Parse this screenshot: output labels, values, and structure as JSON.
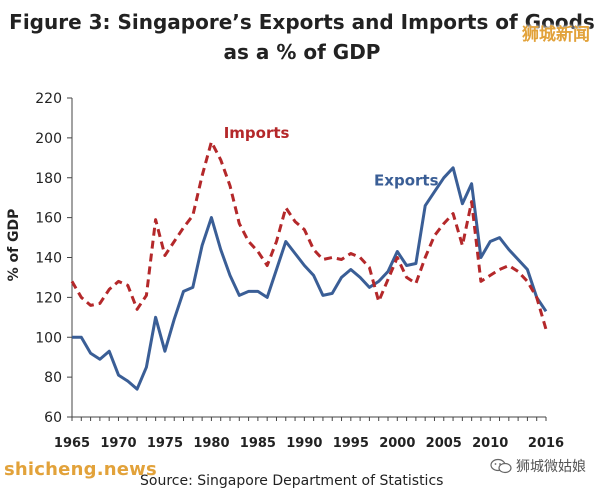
{
  "chart_data": {
    "type": "line",
    "title_line1": "Figure 3: Singapore’s Exports and Imports of Goods",
    "title_line2": "as a % of GDP",
    "ylabel": "% of GDP",
    "xlabel": "",
    "ylim": [
      60,
      220
    ],
    "yticks": [
      60,
      80,
      100,
      120,
      140,
      160,
      180,
      200,
      220
    ],
    "xlim": [
      1965,
      2016
    ],
    "xticks": [
      "1965",
      "1970",
      "1975",
      "1980",
      "1985",
      "1990",
      "1995",
      "2000",
      "2005",
      "2010",
      "2016"
    ],
    "x": [
      1965,
      1966,
      1967,
      1968,
      1969,
      1970,
      1971,
      1972,
      1973,
      1974,
      1975,
      1976,
      1977,
      1978,
      1979,
      1980,
      1981,
      1982,
      1983,
      1984,
      1985,
      1986,
      1987,
      1988,
      1989,
      1990,
      1991,
      1992,
      1993,
      1994,
      1995,
      1996,
      1997,
      1998,
      1999,
      2000,
      2001,
      2002,
      2003,
      2004,
      2005,
      2006,
      2007,
      2008,
      2009,
      2010,
      2011,
      2012,
      2013,
      2014,
      2015,
      2016
    ],
    "series": [
      {
        "name": "Exports",
        "color": "#3a5e96",
        "dash": "solid",
        "values": [
          100,
          100,
          92,
          89,
          93,
          81,
          78,
          74,
          85,
          110,
          93,
          109,
          123,
          125,
          146,
          160,
          144,
          131,
          121,
          123,
          123,
          120,
          134,
          148,
          142,
          136,
          131,
          121,
          122,
          130,
          134,
          130,
          125,
          128,
          133,
          143,
          136,
          137,
          166,
          173,
          180,
          185,
          167,
          177,
          140,
          148,
          150,
          144,
          139,
          134,
          120,
          113
        ]
      },
      {
        "name": "Imports",
        "color": "#b4282a",
        "dash": "dashed",
        "values": [
          128,
          120,
          116,
          117,
          124,
          128,
          126,
          114,
          121,
          159,
          141,
          148,
          155,
          161,
          181,
          198,
          189,
          176,
          157,
          148,
          143,
          136,
          148,
          165,
          158,
          154,
          144,
          139,
          140,
          139,
          142,
          140,
          135,
          118,
          129,
          140,
          130,
          127,
          140,
          151,
          157,
          162,
          146,
          168,
          128,
          131,
          134,
          136,
          133,
          128,
          120,
          104
        ]
      }
    ],
    "annotations": [
      {
        "text": "Imports",
        "series": "Imports"
      },
      {
        "text": "Exports",
        "series": "Exports"
      }
    ],
    "source": "Source: Singapore Department of Statistics"
  },
  "watermarks": {
    "top_right": "狮城新闻",
    "bottom_left": "shicheng.news",
    "bottom_right": "狮城微姑娘"
  }
}
